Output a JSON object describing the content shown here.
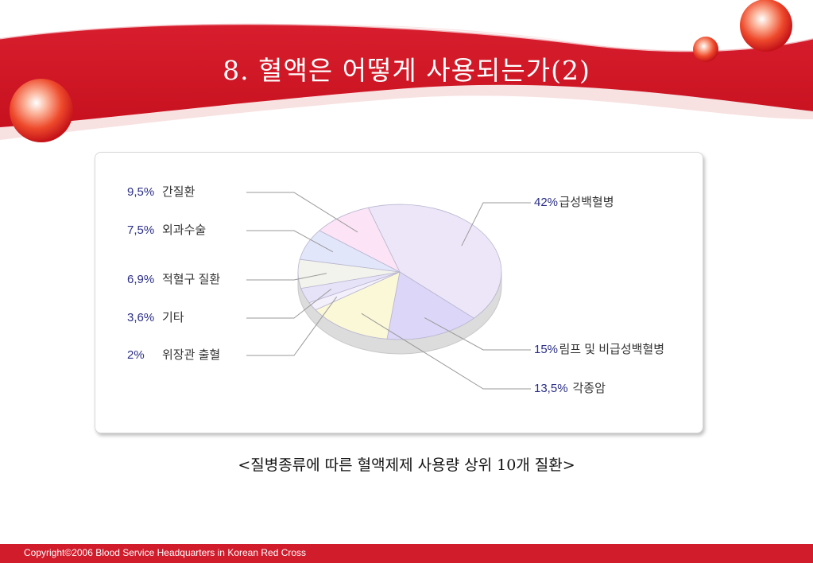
{
  "slide": {
    "title": "8. 혈액은 어떻게 사용되는가(2)",
    "caption": "<질병종류에 따른 혈액제제 사용량 상위 10개 질환>",
    "footer": "Copyright©2006 Blood Service Headquarters in Korean Red Cross"
  },
  "colors": {
    "brand_red": "#d11c2c",
    "label_blue": "#2b2f86"
  },
  "chart_data": {
    "type": "pie",
    "title": "",
    "slices": [
      {
        "label": "급성백혈병",
        "value": 42,
        "value_text": "42%",
        "color": "#ece6f8"
      },
      {
        "label": "림프 및 비급성백혈병",
        "value": 15,
        "value_text": "15%",
        "color": "#dcd6f8"
      },
      {
        "label": "각종암",
        "value": 13.5,
        "value_text": "13,5%",
        "color": "#fbf8d8"
      },
      {
        "label": "위장관 출혈",
        "value": 2,
        "value_text": "2%",
        "color": "#f4f0fb"
      },
      {
        "label": "기타",
        "value": 3.6,
        "value_text": "3,6%",
        "color": "#e6e2f8"
      },
      {
        "label": "적혈구 질환",
        "value": 6.9,
        "value_text": "6,9%",
        "color": "#f3f3ed"
      },
      {
        "label": "외과수술",
        "value": 7.5,
        "value_text": "7,5%",
        "color": "#e2e6fa"
      },
      {
        "label": "간질환",
        "value": 9.5,
        "value_text": "9,5%",
        "color": "#fce4f6"
      }
    ],
    "legend_placement": "labels around pie with leader lines"
  }
}
